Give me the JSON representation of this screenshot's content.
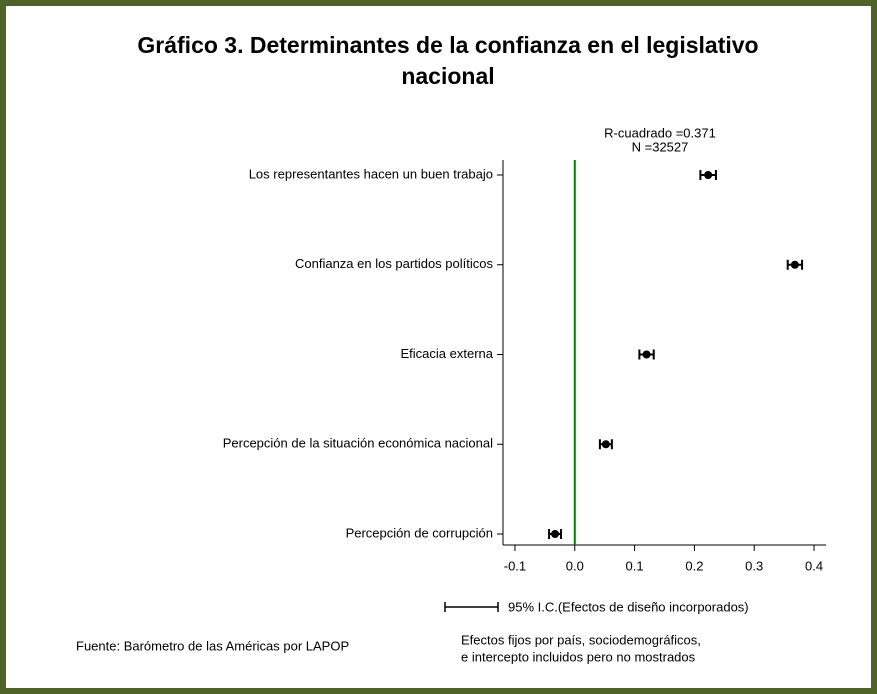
{
  "chart_data": {
    "type": "coefplot",
    "title": [
      "Gráfico 3. Determinantes de la confianza en el legislativo",
      "nacional"
    ],
    "annotations": [
      "R-cuadrado =0.371",
      "N =32527"
    ],
    "categories": [
      "Los representantes hacen un buen trabajo",
      "Confianza en los partidos políticos",
      "Eficacia externa",
      "Percepción de la situación económica nacional",
      "Percepción de corrupción"
    ],
    "values": [
      0.223,
      0.368,
      0.12,
      0.052,
      -0.033
    ],
    "errors": [
      0.013,
      0.012,
      0.012,
      0.01,
      0.01
    ],
    "color": "#000000",
    "reference_color": "#008000",
    "xlim": [
      -0.12,
      0.42
    ],
    "xticks": [
      -0.1,
      {
        "value": 0,
        "label": "0.0"
      },
      0.1,
      0.2,
      0.3,
      0.4
    ],
    "legend_label": "95% I.C.(Efectos de diseño incorporados)",
    "source": "Fuente: Barómetro de las Américas por LAPOP",
    "note": [
      "Efectos fijos por país, sociodemográficos,",
      "e intercepto incluidos pero no mostrados"
    ]
  }
}
